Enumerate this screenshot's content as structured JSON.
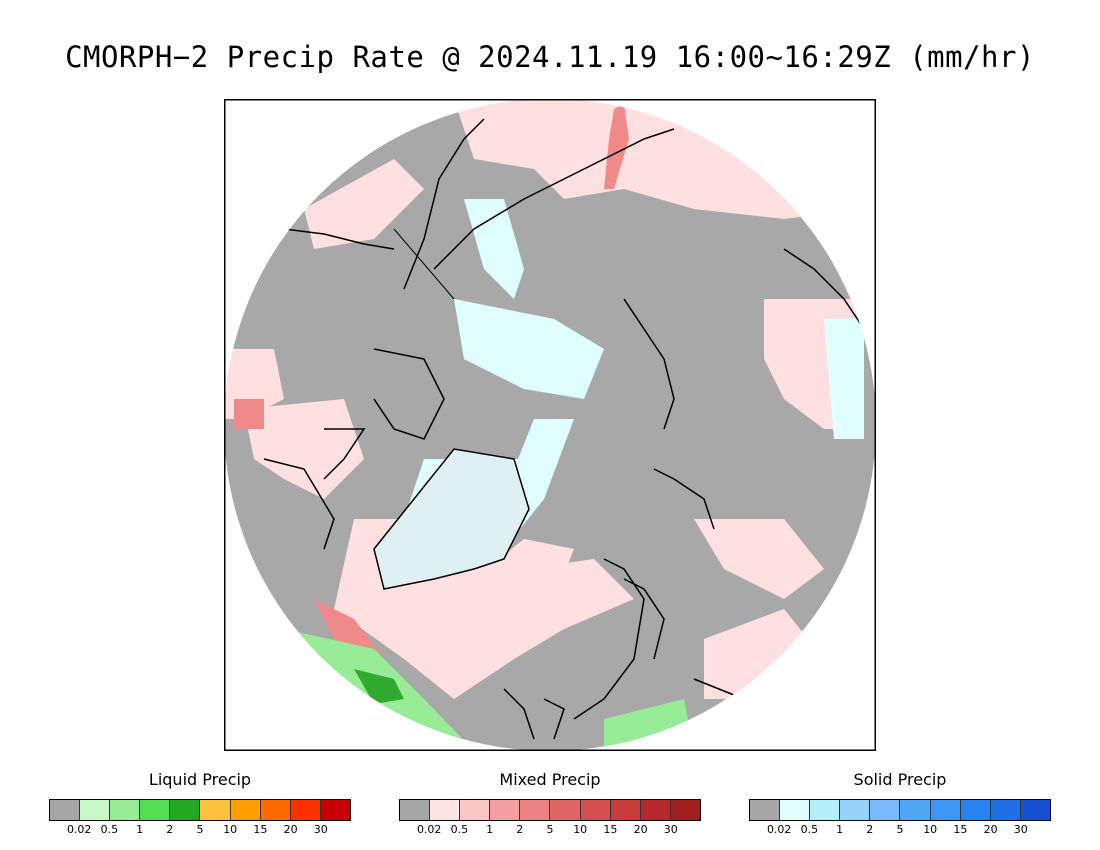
{
  "title": "CMORPH−2 Precip Rate @ 2024.11.19 16:00~16:29Z (mm/hr)",
  "map": {
    "projection": "north polar stereographic",
    "background_color": "#a8a8a8",
    "coastline_color": "#000000"
  },
  "legends": [
    {
      "title": "Liquid Precip",
      "colors": [
        "#a6a6a6",
        "#c8f7c8",
        "#98ec98",
        "#52df52",
        "#22a822",
        "#fdc13c",
        "#ffa000",
        "#ff6a00",
        "#ff3000",
        "#c80000"
      ],
      "ticks": [
        "0.02",
        "0.5",
        "1",
        "2",
        "5",
        "10",
        "15",
        "20",
        "30"
      ]
    },
    {
      "title": "Mixed Precip",
      "colors": [
        "#a6a6a6",
        "#ffe4e4",
        "#fcc6c6",
        "#f4a0a0",
        "#ec8282",
        "#e06666",
        "#d45050",
        "#c83c3c",
        "#b42a2a",
        "#a01e1e"
      ],
      "ticks": [
        "0.02",
        "0.5",
        "1",
        "2",
        "5",
        "10",
        "15",
        "20",
        "30"
      ]
    },
    {
      "title": "Solid Precip",
      "colors": [
        "#a6a6a6",
        "#e0ffff",
        "#b4f0fc",
        "#96d2fa",
        "#78b9fa",
        "#50a5f5",
        "#3c96f5",
        "#2882f0",
        "#1e6ee6",
        "#1450d2"
      ],
      "ticks": [
        "0.02",
        "0.5",
        "1",
        "2",
        "5",
        "10",
        "15",
        "20",
        "30"
      ]
    }
  ]
}
